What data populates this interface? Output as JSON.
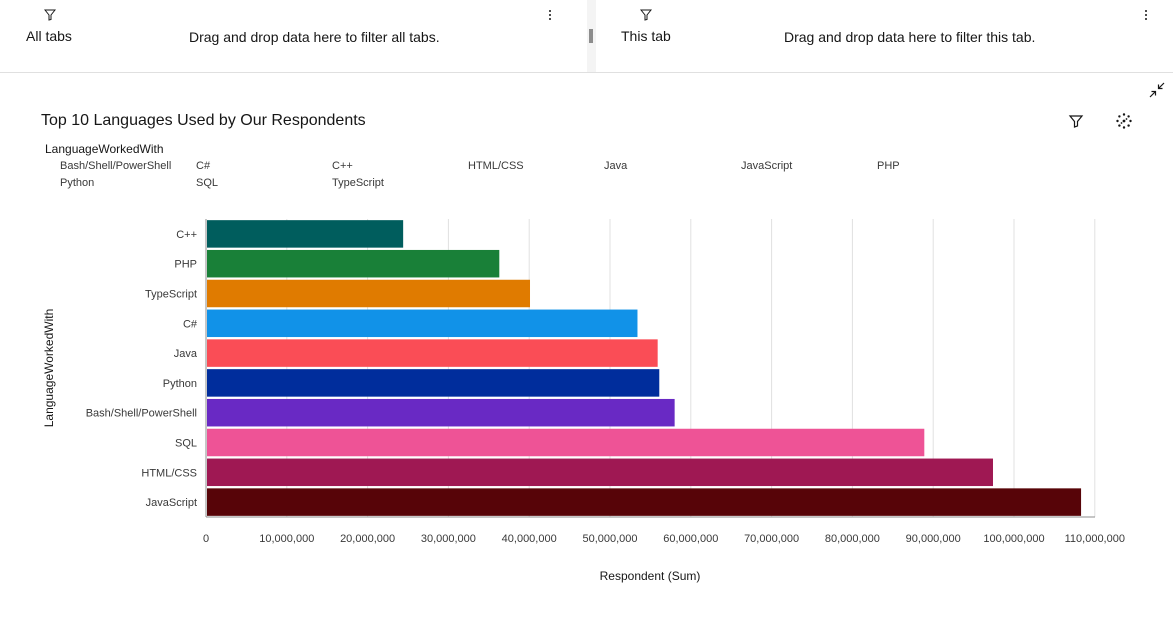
{
  "filters": {
    "all_tabs": {
      "title": "All tabs",
      "hint": "Drag and drop data here to filter all tabs."
    },
    "this_tab": {
      "title": "This tab",
      "hint": "Drag and drop data here to filter this tab."
    }
  },
  "icons": {
    "filter": "funnel-icon",
    "overflow": "overflow-menu-icon",
    "collapse": "collapse-icon",
    "chart_filter": "filter-icon",
    "chart_settings": "dots-circle-icon"
  },
  "legend": {
    "title": "LanguageWorkedWith",
    "items": [
      "Bash/Shell/PowerShell",
      "C#",
      "C++",
      "HTML/CSS",
      "Java",
      "JavaScript",
      "PHP",
      "Python",
      "SQL",
      "TypeScript"
    ]
  },
  "chart_data": {
    "type": "bar",
    "orientation": "horizontal",
    "title": "Top 10 Languages Used by Our Respondents",
    "xlabel": "Respondent (Sum)",
    "ylabel": "LanguageWorkedWith",
    "xlim": [
      0,
      110000000
    ],
    "x_ticks": [
      "0",
      "10,000,000",
      "20,000,000",
      "30,000,000",
      "40,000,000",
      "50,000,000",
      "60,000,000",
      "70,000,000",
      "80,000,000",
      "90,000,000",
      "100,000,000",
      "110,000,000"
    ],
    "grid": true,
    "legend_position": "top",
    "categories": [
      "C++",
      "PHP",
      "TypeScript",
      "C#",
      "Java",
      "Python",
      "Bash/Shell/PowerShell",
      "SQL",
      "HTML/CSS",
      "JavaScript"
    ],
    "values": [
      24400000,
      36300000,
      40100000,
      53400000,
      55900000,
      56100000,
      58000000,
      88900000,
      97400000,
      108300000
    ],
    "colors": [
      "#005d5d",
      "#198038",
      "#e07b00",
      "#1192e8",
      "#fa4d56",
      "#002d9c",
      "#6929c4",
      "#ee5396",
      "#9f1853",
      "#570408"
    ]
  }
}
